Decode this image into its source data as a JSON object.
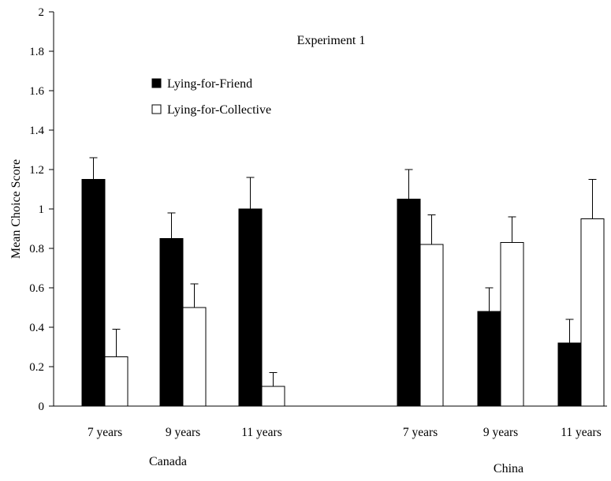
{
  "chart_data": {
    "type": "bar",
    "title": "Experiment 1",
    "ylabel": "Mean Choice Score",
    "xlabel": "",
    "ylim": [
      0,
      2
    ],
    "yticks": [
      "0",
      "0.2",
      "0.4",
      "0.6",
      "0.8",
      "1",
      "1.2",
      "1.4",
      "1.6",
      "1.8",
      "2"
    ],
    "grid": false,
    "legend": {
      "placement": "top-left",
      "entries": [
        "Lying-for-Friend",
        "Lying-for-Collective"
      ]
    },
    "groups": [
      {
        "name": "Canada",
        "categories": [
          "7 years",
          "9 years",
          "11 years"
        ]
      },
      {
        "name": "China",
        "categories": [
          "7 years",
          "9 years",
          "11 years"
        ]
      }
    ],
    "categories": [
      "7 years",
      "9 years",
      "11 years",
      "7 years",
      "9 years",
      "11 years"
    ],
    "series": [
      {
        "name": "Lying-for-Friend",
        "color": "#000000",
        "values": [
          1.15,
          0.85,
          1.0,
          1.05,
          0.48,
          0.32
        ],
        "error_upper": [
          1.26,
          0.98,
          1.16,
          1.2,
          0.6,
          0.44
        ]
      },
      {
        "name": "Lying-for-Collective",
        "color": "#ffffff",
        "values": [
          0.25,
          0.5,
          0.1,
          0.82,
          0.83,
          0.95
        ],
        "error_upper": [
          0.39,
          0.62,
          0.17,
          0.97,
          0.96,
          1.15
        ]
      }
    ]
  }
}
